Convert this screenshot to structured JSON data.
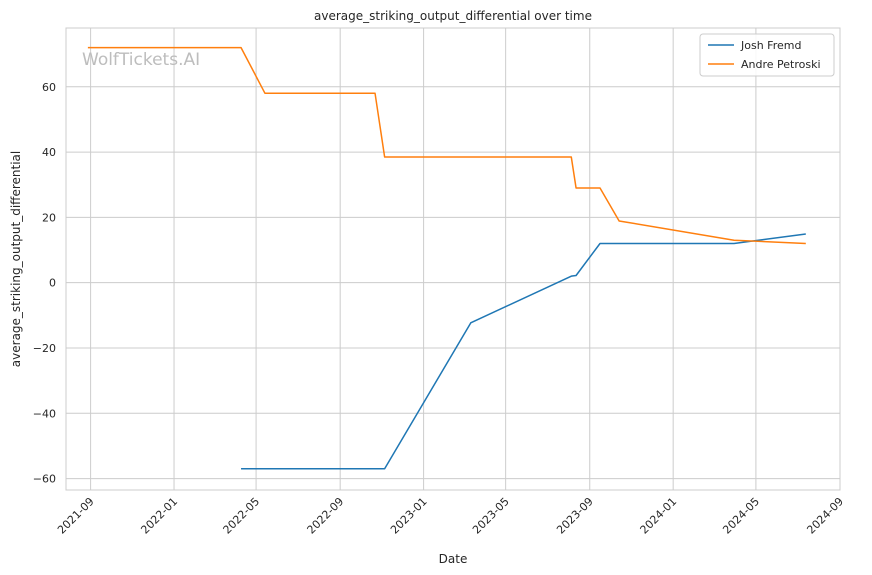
{
  "watermark": "WolfTickets.AI",
  "chart_data": {
    "type": "line",
    "title": "average_striking_output_differential over time",
    "xlabel": "Date",
    "ylabel": "average_striking_output_differential",
    "x_type": "date",
    "xlim": [
      "2021-07-27",
      "2024-09-01"
    ],
    "ylim": [
      -63.5,
      78
    ],
    "x_ticks": [
      "2021-09",
      "2022-01",
      "2022-05",
      "2022-09",
      "2023-01",
      "2023-05",
      "2023-09",
      "2024-01",
      "2024-05",
      "2024-09"
    ],
    "y_ticks": [
      -60,
      -40,
      -20,
      0,
      20,
      40,
      60
    ],
    "grid": true,
    "legend": {
      "position": "top-right"
    },
    "series": [
      {
        "name": "Josh Fremd",
        "color": "#1f77b4",
        "points": [
          {
            "x": "2022-04-09",
            "y": -57.0
          },
          {
            "x": "2022-11-05",
            "y": -57.0
          },
          {
            "x": "2023-03-11",
            "y": -12.3
          },
          {
            "x": "2023-08-05",
            "y": 2.0
          },
          {
            "x": "2023-08-12",
            "y": 2.2
          },
          {
            "x": "2023-09-16",
            "y": 12.0
          },
          {
            "x": "2024-03-30",
            "y": 12.0
          },
          {
            "x": "2024-07-13",
            "y": 14.9
          }
        ]
      },
      {
        "name": "Andre Petroski",
        "color": "#ff7f0e",
        "points": [
          {
            "x": "2021-08-28",
            "y": 72.0
          },
          {
            "x": "2022-04-09",
            "y": 72.0
          },
          {
            "x": "2022-05-14",
            "y": 58.0
          },
          {
            "x": "2022-10-22",
            "y": 58.0
          },
          {
            "x": "2022-11-05",
            "y": 38.5
          },
          {
            "x": "2023-08-05",
            "y": 38.5
          },
          {
            "x": "2023-08-12",
            "y": 29.0
          },
          {
            "x": "2023-09-16",
            "y": 29.0
          },
          {
            "x": "2023-10-14",
            "y": 18.9
          },
          {
            "x": "2024-03-30",
            "y": 13.0
          },
          {
            "x": "2024-07-13",
            "y": 12.0
          }
        ]
      }
    ]
  }
}
